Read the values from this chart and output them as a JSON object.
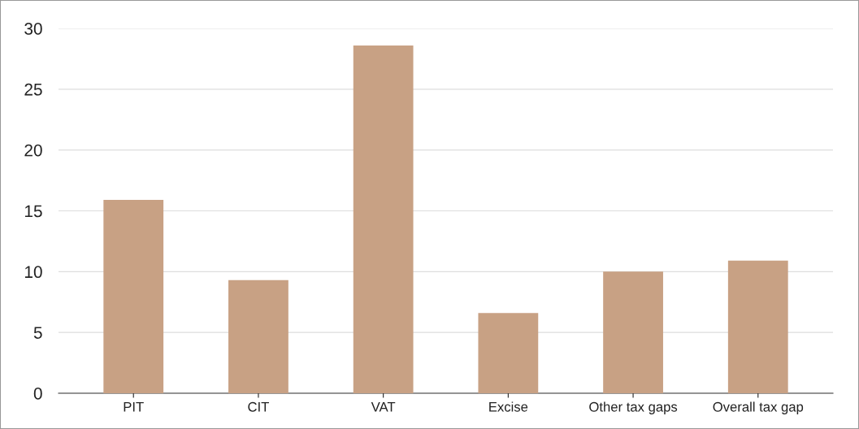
{
  "chart_data": {
    "type": "bar",
    "categories": [
      "PIT",
      "CIT",
      "VAT",
      "Excise",
      "Other tax gaps",
      "Overall tax gap"
    ],
    "values": [
      15.9,
      9.3,
      28.6,
      6.6,
      10.0,
      10.9
    ],
    "color": "#c8a184",
    "ylim": [
      0,
      30
    ],
    "yticks": [
      0,
      5,
      10,
      15,
      20,
      25,
      30
    ],
    "grid": "y"
  }
}
